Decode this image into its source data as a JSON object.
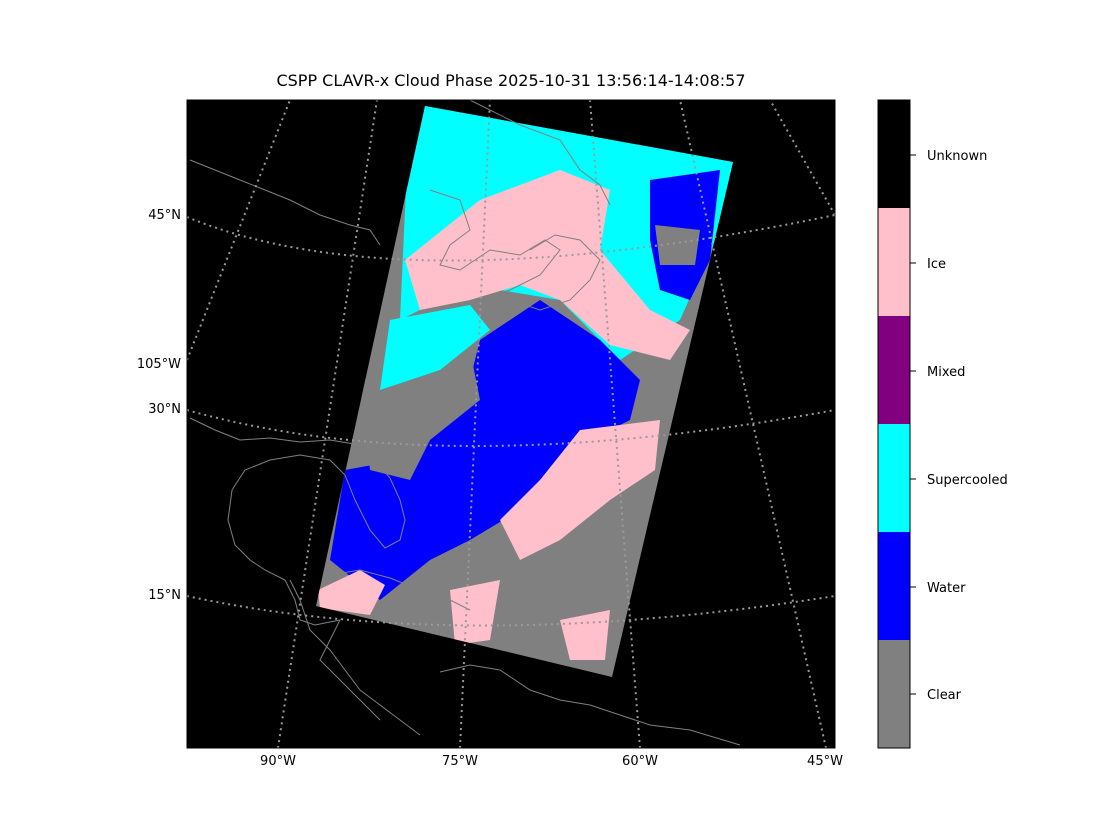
{
  "title": "CSPP CLAVR-x Cloud Phase 2025-10-31 13:56:14-14:08:57",
  "map": {
    "background_color": "#000000",
    "coastline_color": "#808080",
    "graticule_color": "#9a9a9a",
    "lat_labels": [
      "45°N",
      "105°W",
      "30°N",
      "15°N"
    ],
    "lon_labels": [
      "90°W",
      "75°W",
      "60°W",
      "45°W"
    ]
  },
  "colorbar": {
    "classes": [
      {
        "label": "Unknown",
        "color": "#000000"
      },
      {
        "label": "Ice",
        "color": "#ffc0cb"
      },
      {
        "label": "Mixed",
        "color": "#800080"
      },
      {
        "label": "Supercooled",
        "color": "#00ffff"
      },
      {
        "label": "Water",
        "color": "#0000ff"
      },
      {
        "label": "Clear",
        "color": "#808080"
      }
    ]
  }
}
